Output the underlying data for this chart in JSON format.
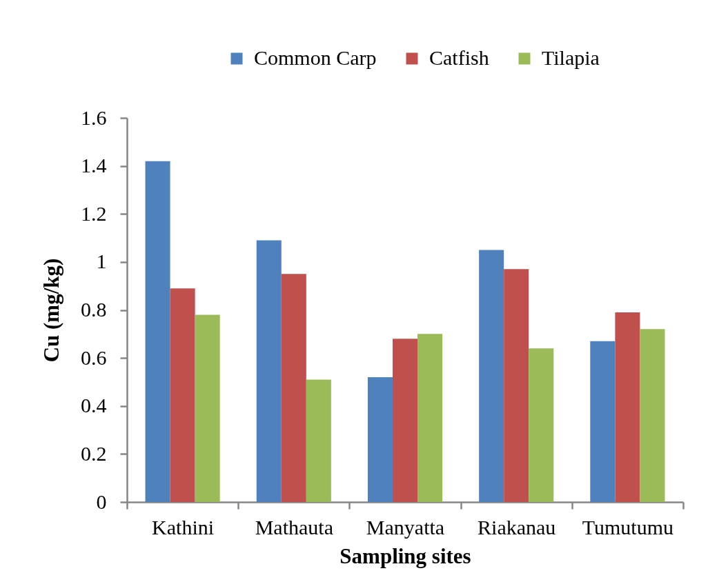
{
  "chart_data": {
    "type": "bar",
    "xlabel": "Sampling sites",
    "ylabel": "Cu (mg/kg)",
    "categories": [
      "Kathini",
      "Mathauta",
      "Manyatta",
      "Riakanau",
      "Tumutumu"
    ],
    "series": [
      {
        "name": "Common Carp",
        "color": "#4f81bd",
        "values": [
          1.42,
          1.09,
          0.52,
          1.05,
          0.67
        ]
      },
      {
        "name": "Catfish",
        "color": "#c0504d",
        "values": [
          0.89,
          0.95,
          0.68,
          0.97,
          0.79
        ]
      },
      {
        "name": "Tilapia",
        "color": "#9bbb59",
        "values": [
          0.78,
          0.51,
          0.7,
          0.64,
          0.72
        ]
      }
    ],
    "ylim": [
      0,
      1.6
    ],
    "yticks": [
      0,
      0.2,
      0.4,
      0.6,
      0.8,
      1,
      1.2,
      1.4,
      1.6
    ],
    "legend": "top"
  }
}
